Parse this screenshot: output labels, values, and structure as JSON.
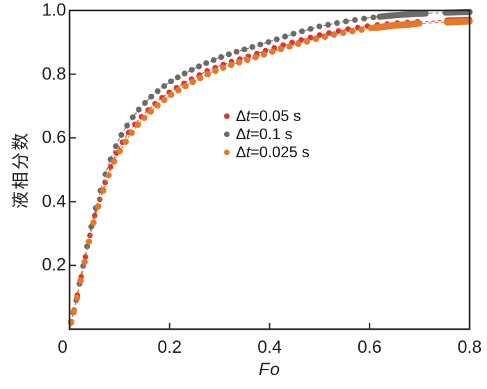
{
  "chart_data": {
    "type": "scatter",
    "title": "",
    "xlabel": "Fo",
    "ylabel": "液相分数",
    "xlim": [
      0,
      0.8
    ],
    "ylim": [
      0,
      1.0
    ],
    "grid": false,
    "legend_position": "inside-center-right",
    "x_ticks": [
      {
        "value": 0,
        "label": "0",
        "dx": -10
      },
      {
        "value": 0.2,
        "label": "0.2",
        "dx": 0
      },
      {
        "value": 0.4,
        "label": "0.4",
        "dx": 0
      },
      {
        "value": 0.6,
        "label": "0.6",
        "dx": 0
      },
      {
        "value": 0.8,
        "label": "0.8",
        "dx": 0
      }
    ],
    "y_ticks": [
      {
        "value": 0.2,
        "label": "0.2"
      },
      {
        "value": 0.4,
        "label": "0.4"
      },
      {
        "value": 0.6,
        "label": "0.6"
      },
      {
        "value": 0.8,
        "label": "0.8"
      },
      {
        "value": 1.0,
        "label": "1.0"
      }
    ],
    "series": [
      {
        "name": "Δt=0.05 s",
        "color": "#df3531",
        "marker_radius": 4.0,
        "marker_count": 52,
        "spacing_exponent": 1.38,
        "gaps": [
          [
            0.7,
            0.752
          ]
        ],
        "clusters": [
          [
            0.755,
            0.8
          ]
        ],
        "points": [
          [
            0,
            0
          ],
          [
            0.005,
            0.035
          ],
          [
            0.0125,
            0.083
          ],
          [
            0.02,
            0.14
          ],
          [
            0.03,
            0.215
          ],
          [
            0.04,
            0.29
          ],
          [
            0.05,
            0.355
          ],
          [
            0.06,
            0.405
          ],
          [
            0.07,
            0.455
          ],
          [
            0.08,
            0.5
          ],
          [
            0.09,
            0.54
          ],
          [
            0.1,
            0.572
          ],
          [
            0.12,
            0.622
          ],
          [
            0.14,
            0.66
          ],
          [
            0.16,
            0.692
          ],
          [
            0.18,
            0.72
          ],
          [
            0.2,
            0.744
          ],
          [
            0.225,
            0.768
          ],
          [
            0.25,
            0.79
          ],
          [
            0.275,
            0.81
          ],
          [
            0.3,
            0.826
          ],
          [
            0.325,
            0.84
          ],
          [
            0.35,
            0.852
          ],
          [
            0.4,
            0.878
          ],
          [
            0.45,
            0.902
          ],
          [
            0.5,
            0.923
          ],
          [
            0.55,
            0.94
          ],
          [
            0.6,
            0.952
          ],
          [
            0.65,
            0.96
          ],
          [
            0.7,
            0.965
          ],
          [
            0.75,
            0.968
          ],
          [
            0.8,
            0.971
          ]
        ]
      },
      {
        "name": "Δt=0.1 s",
        "color": "#6e6a68",
        "marker_radius": 4.2,
        "marker_count": 56,
        "spacing_exponent": 1.4,
        "gaps": [
          [
            0.717,
            0.748
          ]
        ],
        "clusters": [
          [
            0.62,
            0.713
          ],
          [
            0.752,
            0.8
          ]
        ],
        "points": [
          [
            0,
            0
          ],
          [
            0.005,
            0.035
          ],
          [
            0.0125,
            0.085
          ],
          [
            0.02,
            0.143
          ],
          [
            0.03,
            0.22
          ],
          [
            0.04,
            0.298
          ],
          [
            0.05,
            0.365
          ],
          [
            0.06,
            0.425
          ],
          [
            0.07,
            0.478
          ],
          [
            0.08,
            0.525
          ],
          [
            0.09,
            0.565
          ],
          [
            0.1,
            0.6
          ],
          [
            0.12,
            0.652
          ],
          [
            0.14,
            0.692
          ],
          [
            0.16,
            0.725
          ],
          [
            0.18,
            0.752
          ],
          [
            0.2,
            0.775
          ],
          [
            0.225,
            0.798
          ],
          [
            0.25,
            0.818
          ],
          [
            0.275,
            0.836
          ],
          [
            0.3,
            0.852
          ],
          [
            0.325,
            0.866
          ],
          [
            0.35,
            0.878
          ],
          [
            0.4,
            0.902
          ],
          [
            0.45,
            0.928
          ],
          [
            0.5,
            0.95
          ],
          [
            0.55,
            0.965
          ],
          [
            0.6,
            0.977
          ],
          [
            0.65,
            0.985
          ],
          [
            0.7,
            0.99
          ],
          [
            0.75,
            0.993
          ],
          [
            0.8,
            0.995
          ]
        ]
      },
      {
        "name": "Δt=0.025 s",
        "color": "#e5792b",
        "marker_radius": 4.6,
        "marker_count": 54,
        "spacing_exponent": 1.38,
        "gaps": [
          [
            0.7,
            0.752
          ]
        ],
        "clusters": [
          [
            0.61,
            0.697
          ],
          [
            0.755,
            0.8
          ]
        ],
        "points": [
          [
            0,
            0
          ],
          [
            0.005,
            0.034
          ],
          [
            0.0125,
            0.081
          ],
          [
            0.02,
            0.137
          ],
          [
            0.03,
            0.211
          ],
          [
            0.04,
            0.285
          ],
          [
            0.05,
            0.349
          ],
          [
            0.06,
            0.398
          ],
          [
            0.07,
            0.447
          ],
          [
            0.08,
            0.492
          ],
          [
            0.09,
            0.53
          ],
          [
            0.1,
            0.558
          ],
          [
            0.12,
            0.608
          ],
          [
            0.14,
            0.648
          ],
          [
            0.16,
            0.68
          ],
          [
            0.18,
            0.708
          ],
          [
            0.2,
            0.732
          ],
          [
            0.225,
            0.757
          ],
          [
            0.25,
            0.779
          ],
          [
            0.275,
            0.799
          ],
          [
            0.3,
            0.816
          ],
          [
            0.325,
            0.83
          ],
          [
            0.35,
            0.842
          ],
          [
            0.4,
            0.868
          ],
          [
            0.45,
            0.892
          ],
          [
            0.5,
            0.914
          ],
          [
            0.55,
            0.931
          ],
          [
            0.6,
            0.944
          ],
          [
            0.65,
            0.953
          ],
          [
            0.7,
            0.959
          ],
          [
            0.75,
            0.963
          ],
          [
            0.8,
            0.966
          ]
        ]
      }
    ],
    "axis_color": "#2b2b2b",
    "text_color": "#1c1c1c"
  }
}
